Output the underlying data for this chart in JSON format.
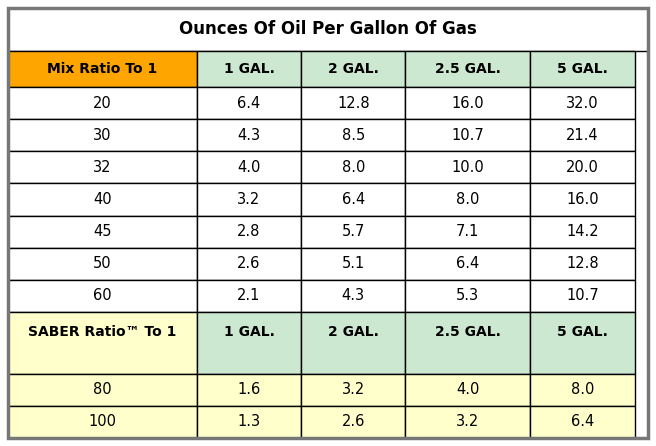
{
  "title": "Ounces Of Oil Per Gallon Of Gas",
  "col_headers": [
    "Mix Ratio To 1",
    "1 GAL.",
    "2 GAL.",
    "2.5 GAL.",
    "5 GAL."
  ],
  "mix_rows": [
    [
      "20",
      "6.4",
      "12.8",
      "16.0",
      "32.0"
    ],
    [
      "30",
      "4.3",
      "8.5",
      "10.7",
      "21.4"
    ],
    [
      "32",
      "4.0",
      "8.0",
      "10.0",
      "20.0"
    ],
    [
      "40",
      "3.2",
      "6.4",
      "8.0",
      "16.0"
    ],
    [
      "45",
      "2.8",
      "5.7",
      "7.1",
      "14.2"
    ],
    [
      "50",
      "2.6",
      "5.1",
      "6.4",
      "12.8"
    ],
    [
      "60",
      "2.1",
      "4.3",
      "5.3",
      "10.7"
    ]
  ],
  "saber_header": [
    "SABER Ratio™ To 1",
    "1 GAL.",
    "2 GAL.",
    "2.5 GAL.",
    "5 GAL."
  ],
  "saber_rows": [
    [
      "80",
      "1.6",
      "3.2",
      "4.0",
      "8.0"
    ],
    [
      "100",
      "1.3",
      "2.6",
      "3.2",
      "6.4"
    ]
  ],
  "color_title_bg": "#ffffff",
  "color_title_text": "#000000",
  "color_mix_header_bg": "#FFA500",
  "color_mix_header_text": "#000000",
  "color_col_header_bg": "#cce8d0",
  "color_col_header_text": "#000000",
  "color_mix_row_bg": "#ffffff",
  "color_mix_row_text": "#000000",
  "color_saber_header_bg": "#ffffcc",
  "color_saber_header_text": "#000000",
  "color_saber_col_header_bg": "#cce8d0",
  "color_saber_col_header_text": "#000000",
  "color_saber_row_bg": "#ffffcc",
  "color_saber_row_text": "#000000",
  "color_border": "#000000",
  "outer_border_color": "#777777",
  "fig_bg": "#ffffff",
  "figsize": [
    6.56,
    4.46
  ],
  "dpi": 100
}
